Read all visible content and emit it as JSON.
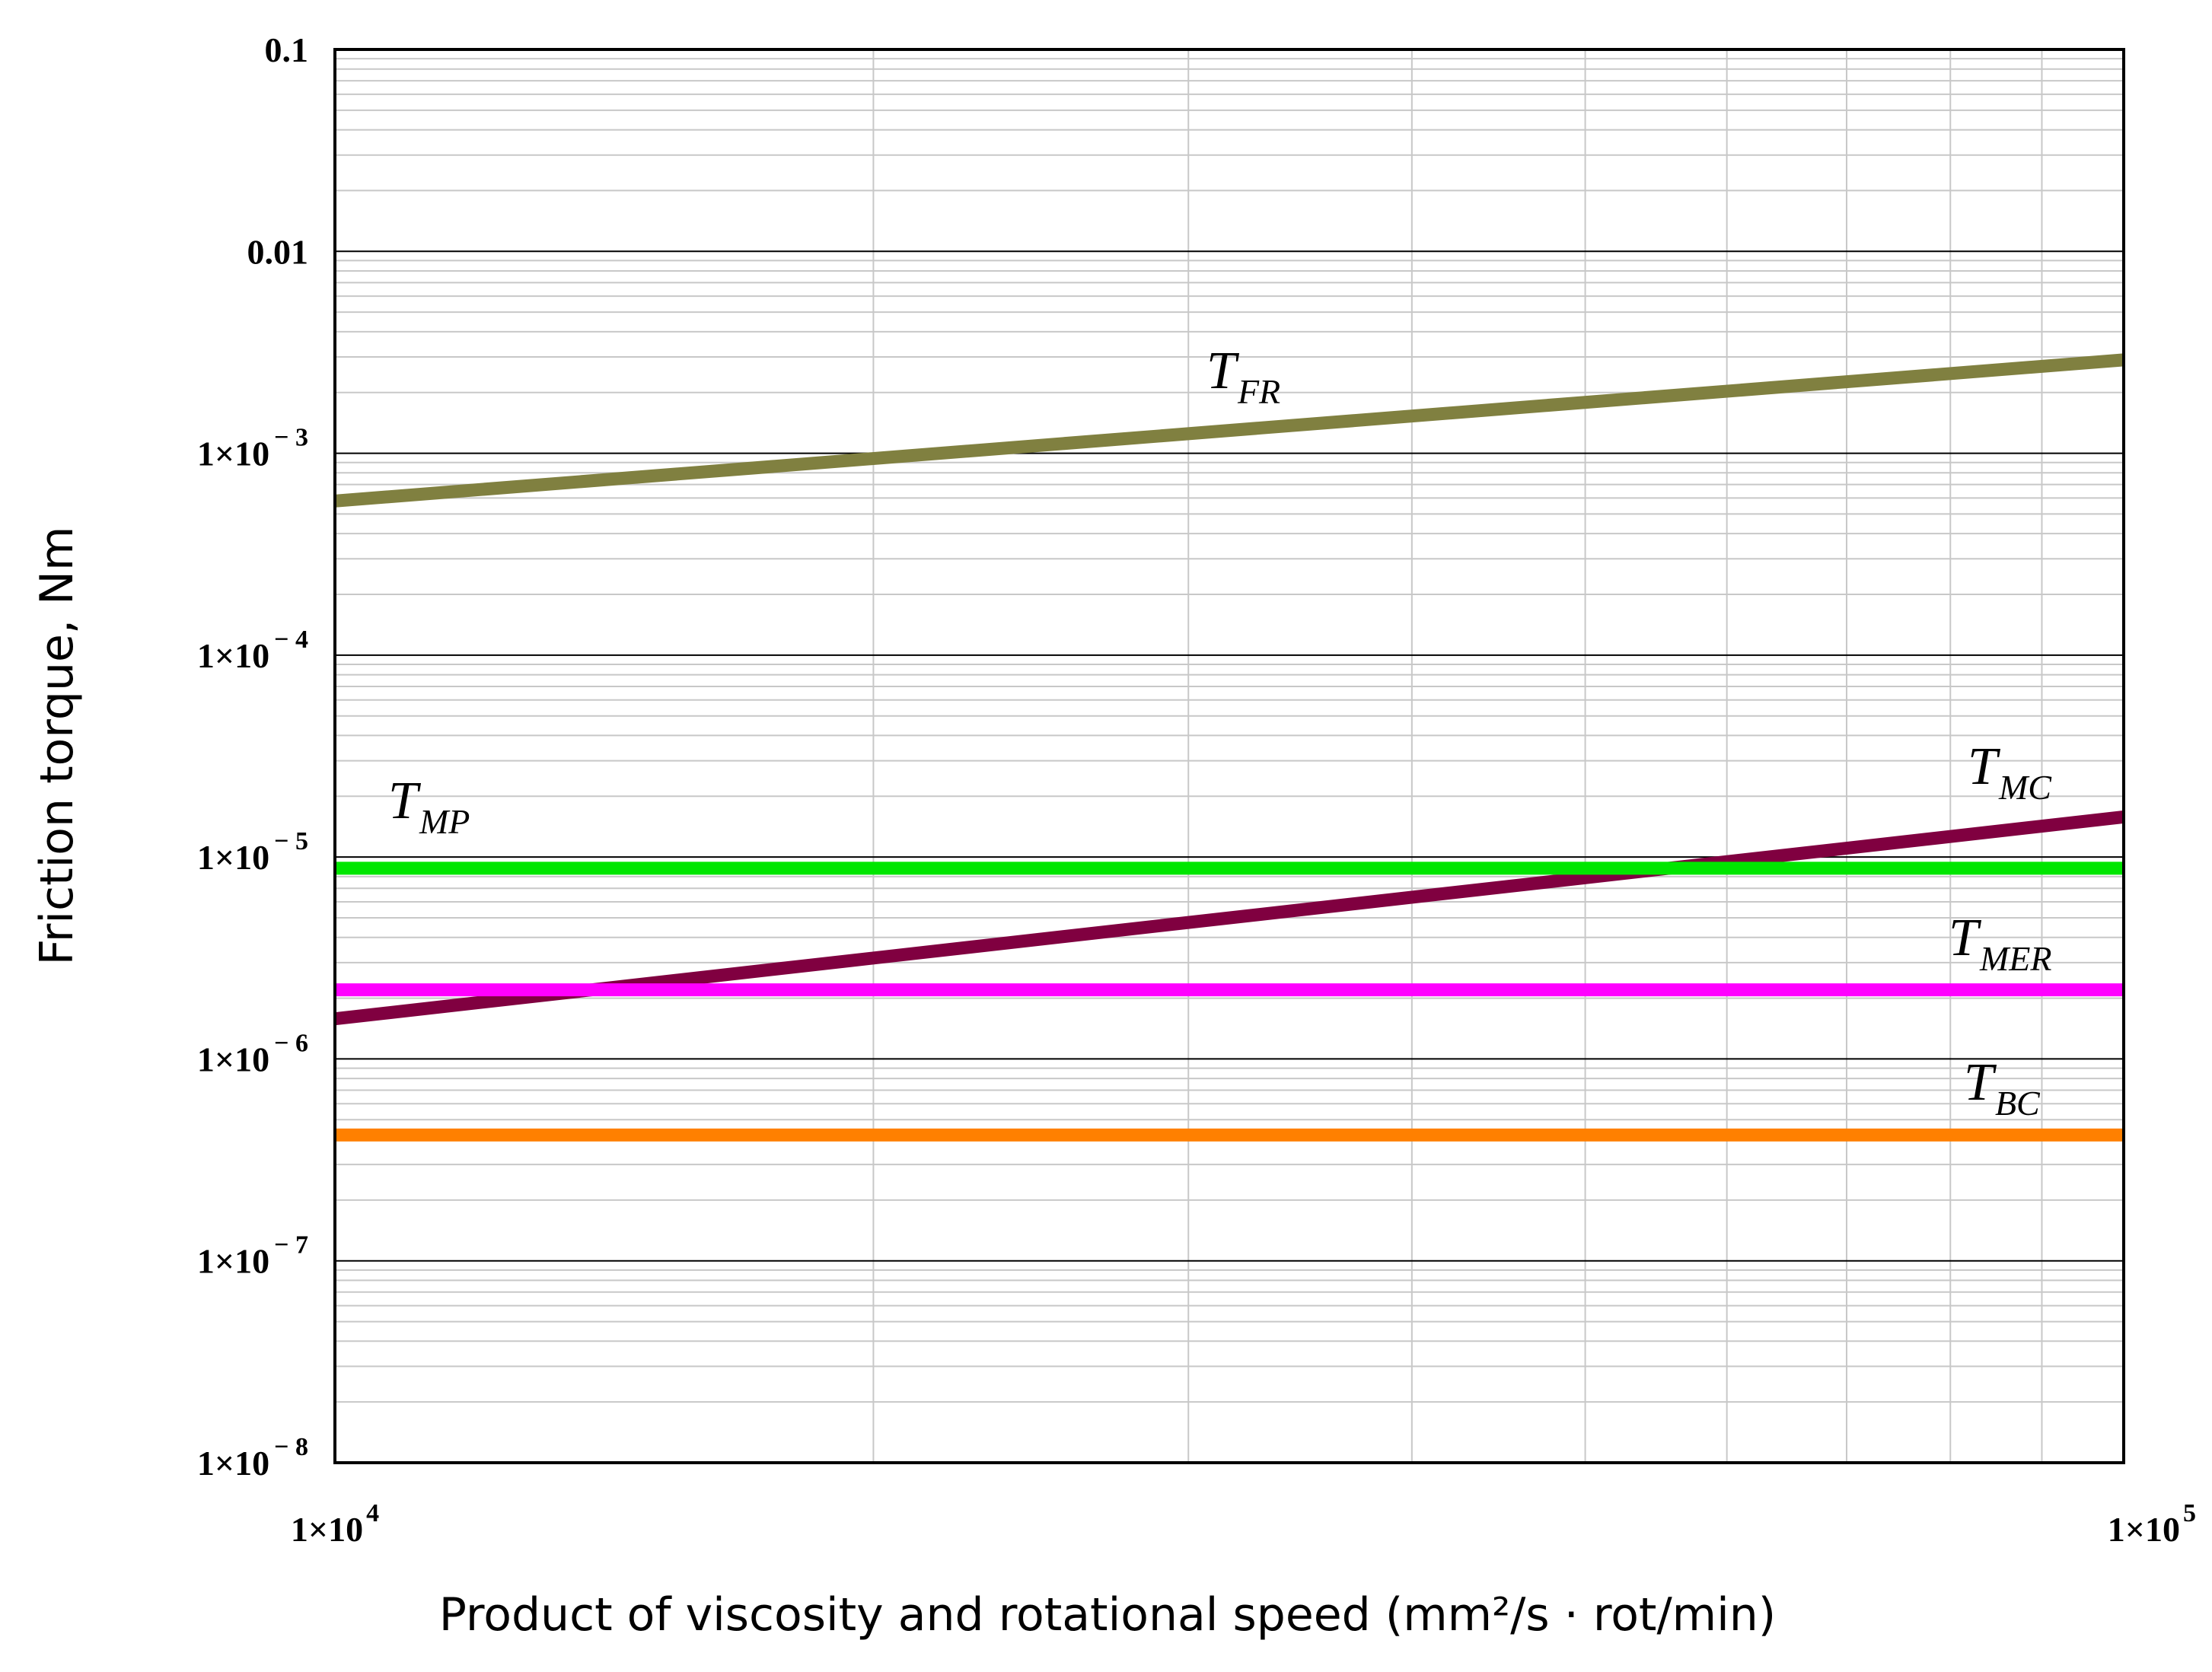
{
  "chart_data": {
    "type": "line",
    "xlabel": "Product of viscosity and rotational speed (mm²/s · rot/min)",
    "ylabel": "Friction torque, Nm",
    "x_scale": "log",
    "y_scale": "log",
    "xlim": [
      10000,
      100000
    ],
    "ylim": [
      1e-08,
      0.1
    ],
    "grid": true,
    "x_ticks": [
      {
        "value": 10000,
        "mantissa": "1×10",
        "exp": "4"
      },
      {
        "value": 100000,
        "mantissa": "1×10",
        "exp": "5"
      }
    ],
    "y_ticks": [
      {
        "value": 0.1,
        "mantissa": "0.1",
        "exp": ""
      },
      {
        "value": 0.01,
        "mantissa": "0.01",
        "exp": ""
      },
      {
        "value": 0.001,
        "mantissa": "1×10",
        "exp": "− 3"
      },
      {
        "value": 0.0001,
        "mantissa": "1×10",
        "exp": "− 4"
      },
      {
        "value": 1e-05,
        "mantissa": "1×10",
        "exp": "− 5"
      },
      {
        "value": 1e-06,
        "mantissa": "1×10",
        "exp": "− 6"
      },
      {
        "value": 1e-07,
        "mantissa": "1×10",
        "exp": "− 7"
      },
      {
        "value": 1e-08,
        "mantissa": "1×10",
        "exp": "− 8"
      }
    ],
    "series": [
      {
        "name": "T_FR",
        "label_main": "T",
        "label_sub": "FR",
        "color": "#808040",
        "x": [
          10000,
          100000
        ],
        "y": [
          0.00058,
          0.0029
        ]
      },
      {
        "name": "T_MC",
        "label_main": "T",
        "label_sub": "MC",
        "color": "#800040",
        "x": [
          10000,
          100000
        ],
        "y": [
          1.58e-06,
          1.58e-05
        ]
      },
      {
        "name": "T_MP",
        "label_main": "T",
        "label_sub": "MP",
        "color": "#00e600",
        "x": [
          10000,
          100000
        ],
        "y": [
          8.8e-06,
          8.8e-06
        ]
      },
      {
        "name": "T_MER",
        "label_main": "T",
        "label_sub": "MER",
        "color": "#ff00ff",
        "x": [
          10000,
          100000
        ],
        "y": [
          2.2e-06,
          2.2e-06
        ]
      },
      {
        "name": "T_BC",
        "label_main": "T",
        "label_sub": "BC",
        "color": "#ff8000",
        "x": [
          10000,
          100000
        ],
        "y": [
          4.2e-07,
          4.2e-07
        ]
      }
    ]
  }
}
